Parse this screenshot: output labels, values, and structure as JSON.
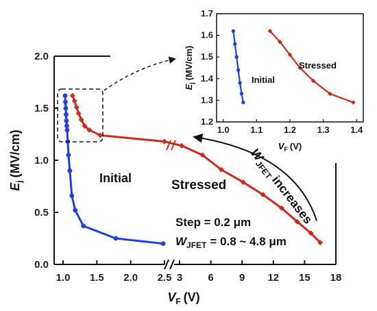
{
  "chart_data": [
    {
      "type": "line",
      "xlabel": "V",
      "xlabel_sub": "F",
      "xlabel_unit": "(V)",
      "ylabel": "E",
      "ylabel_sub": "j",
      "ylabel_unit": "(MV/cm)",
      "x_axis_broken": true,
      "x_break": 2.5,
      "x_ticks_left": [
        1.0,
        1.5,
        2.0,
        2.5
      ],
      "x_ticks_right": [
        3,
        6,
        9,
        12,
        15,
        18
      ],
      "x_tick_labels_left": [
        "1.0",
        "1.5",
        "2.0",
        "2.5"
      ],
      "x_tick_labels_right": [
        "3",
        "6",
        "9",
        "12",
        "15",
        "18"
      ],
      "y_ticks": [
        0.0,
        0.5,
        1.0,
        1.5,
        2.0
      ],
      "y_tick_labels": [
        "0.0",
        "0.5",
        "1.0",
        "1.5",
        "2.0"
      ],
      "ylim": [
        0,
        2.0
      ],
      "series": [
        {
          "name": "Initial",
          "color": "#1f3fe0",
          "marker": "circle",
          "x": [
            1.03,
            1.035,
            1.04,
            1.045,
            1.05,
            1.055,
            1.06,
            1.07,
            1.08,
            1.1,
            1.13,
            1.18,
            1.3,
            1.78,
            2.48
          ],
          "y": [
            1.62,
            1.56,
            1.5,
            1.44,
            1.38,
            1.33,
            1.29,
            1.18,
            1.05,
            0.9,
            0.66,
            0.52,
            0.37,
            0.25,
            0.2
          ]
        },
        {
          "name": "Stressed",
          "color": "#cc2a1a",
          "marker": "diamond",
          "x": [
            1.14,
            1.17,
            1.2,
            1.23,
            1.27,
            1.32,
            1.39,
            1.55,
            2.5,
            3.2,
            5.2,
            7.0,
            9.1,
            11.0,
            12.8,
            14.3,
            15.6,
            16.5
          ],
          "y": [
            1.62,
            1.57,
            1.51,
            1.45,
            1.39,
            1.33,
            1.29,
            1.24,
            1.18,
            1.14,
            1.05,
            0.91,
            0.79,
            0.67,
            0.54,
            0.41,
            0.3,
            0.21
          ]
        }
      ]
    },
    {
      "type": "line",
      "xlabel": "V",
      "xlabel_sub": "F",
      "xlabel_unit": "(V)",
      "ylabel": "E",
      "ylabel_sub": "j",
      "ylabel_unit": "(MV/cm)",
      "xlim": [
        0.98,
        1.42
      ],
      "ylim": [
        1.2,
        1.7
      ],
      "x_ticks": [
        1.0,
        1.1,
        1.2,
        1.3,
        1.4
      ],
      "x_tick_labels": [
        "1.0",
        "1.1",
        "1.2",
        "1.3",
        "1.4"
      ],
      "y_ticks": [
        1.2,
        1.3,
        1.4,
        1.5,
        1.6,
        1.7
      ],
      "y_tick_labels": [
        "1.2",
        "1.3",
        "1.4",
        "1.5",
        "1.6",
        "1.7"
      ],
      "series": [
        {
          "name": "Initial",
          "color": "#1f3fe0",
          "marker": "circle",
          "x": [
            1.03,
            1.035,
            1.04,
            1.045,
            1.05,
            1.055,
            1.06
          ],
          "y": [
            1.62,
            1.56,
            1.5,
            1.44,
            1.38,
            1.33,
            1.29
          ]
        },
        {
          "name": "Stressed",
          "color": "#cc2a1a",
          "marker": "diamond",
          "x": [
            1.14,
            1.17,
            1.2,
            1.23,
            1.27,
            1.32,
            1.39
          ],
          "y": [
            1.62,
            1.57,
            1.51,
            1.45,
            1.39,
            1.33,
            1.29
          ]
        }
      ]
    }
  ],
  "annotations": {
    "initial_label": "Initial",
    "stressed_label": "Stressed",
    "arrow_label_main": "W",
    "arrow_label_sub": "JFET",
    "arrow_label_rest": "increases",
    "step_text": "Step = 0.2 μm",
    "wjfet_main": "W",
    "wjfet_sub": "JFET",
    "wjfet_rest": "= 0.8 ~ 4.8 μm"
  }
}
